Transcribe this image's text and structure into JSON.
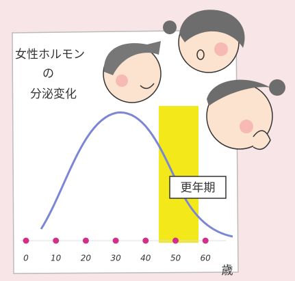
{
  "title_lines": [
    "女性ホルモン",
    "の",
    "分泌変化"
  ],
  "axis": {
    "ticks": [
      0,
      10,
      20,
      30,
      40,
      50,
      60
    ],
    "unit": "歳"
  },
  "band_label": "更年期"
}
